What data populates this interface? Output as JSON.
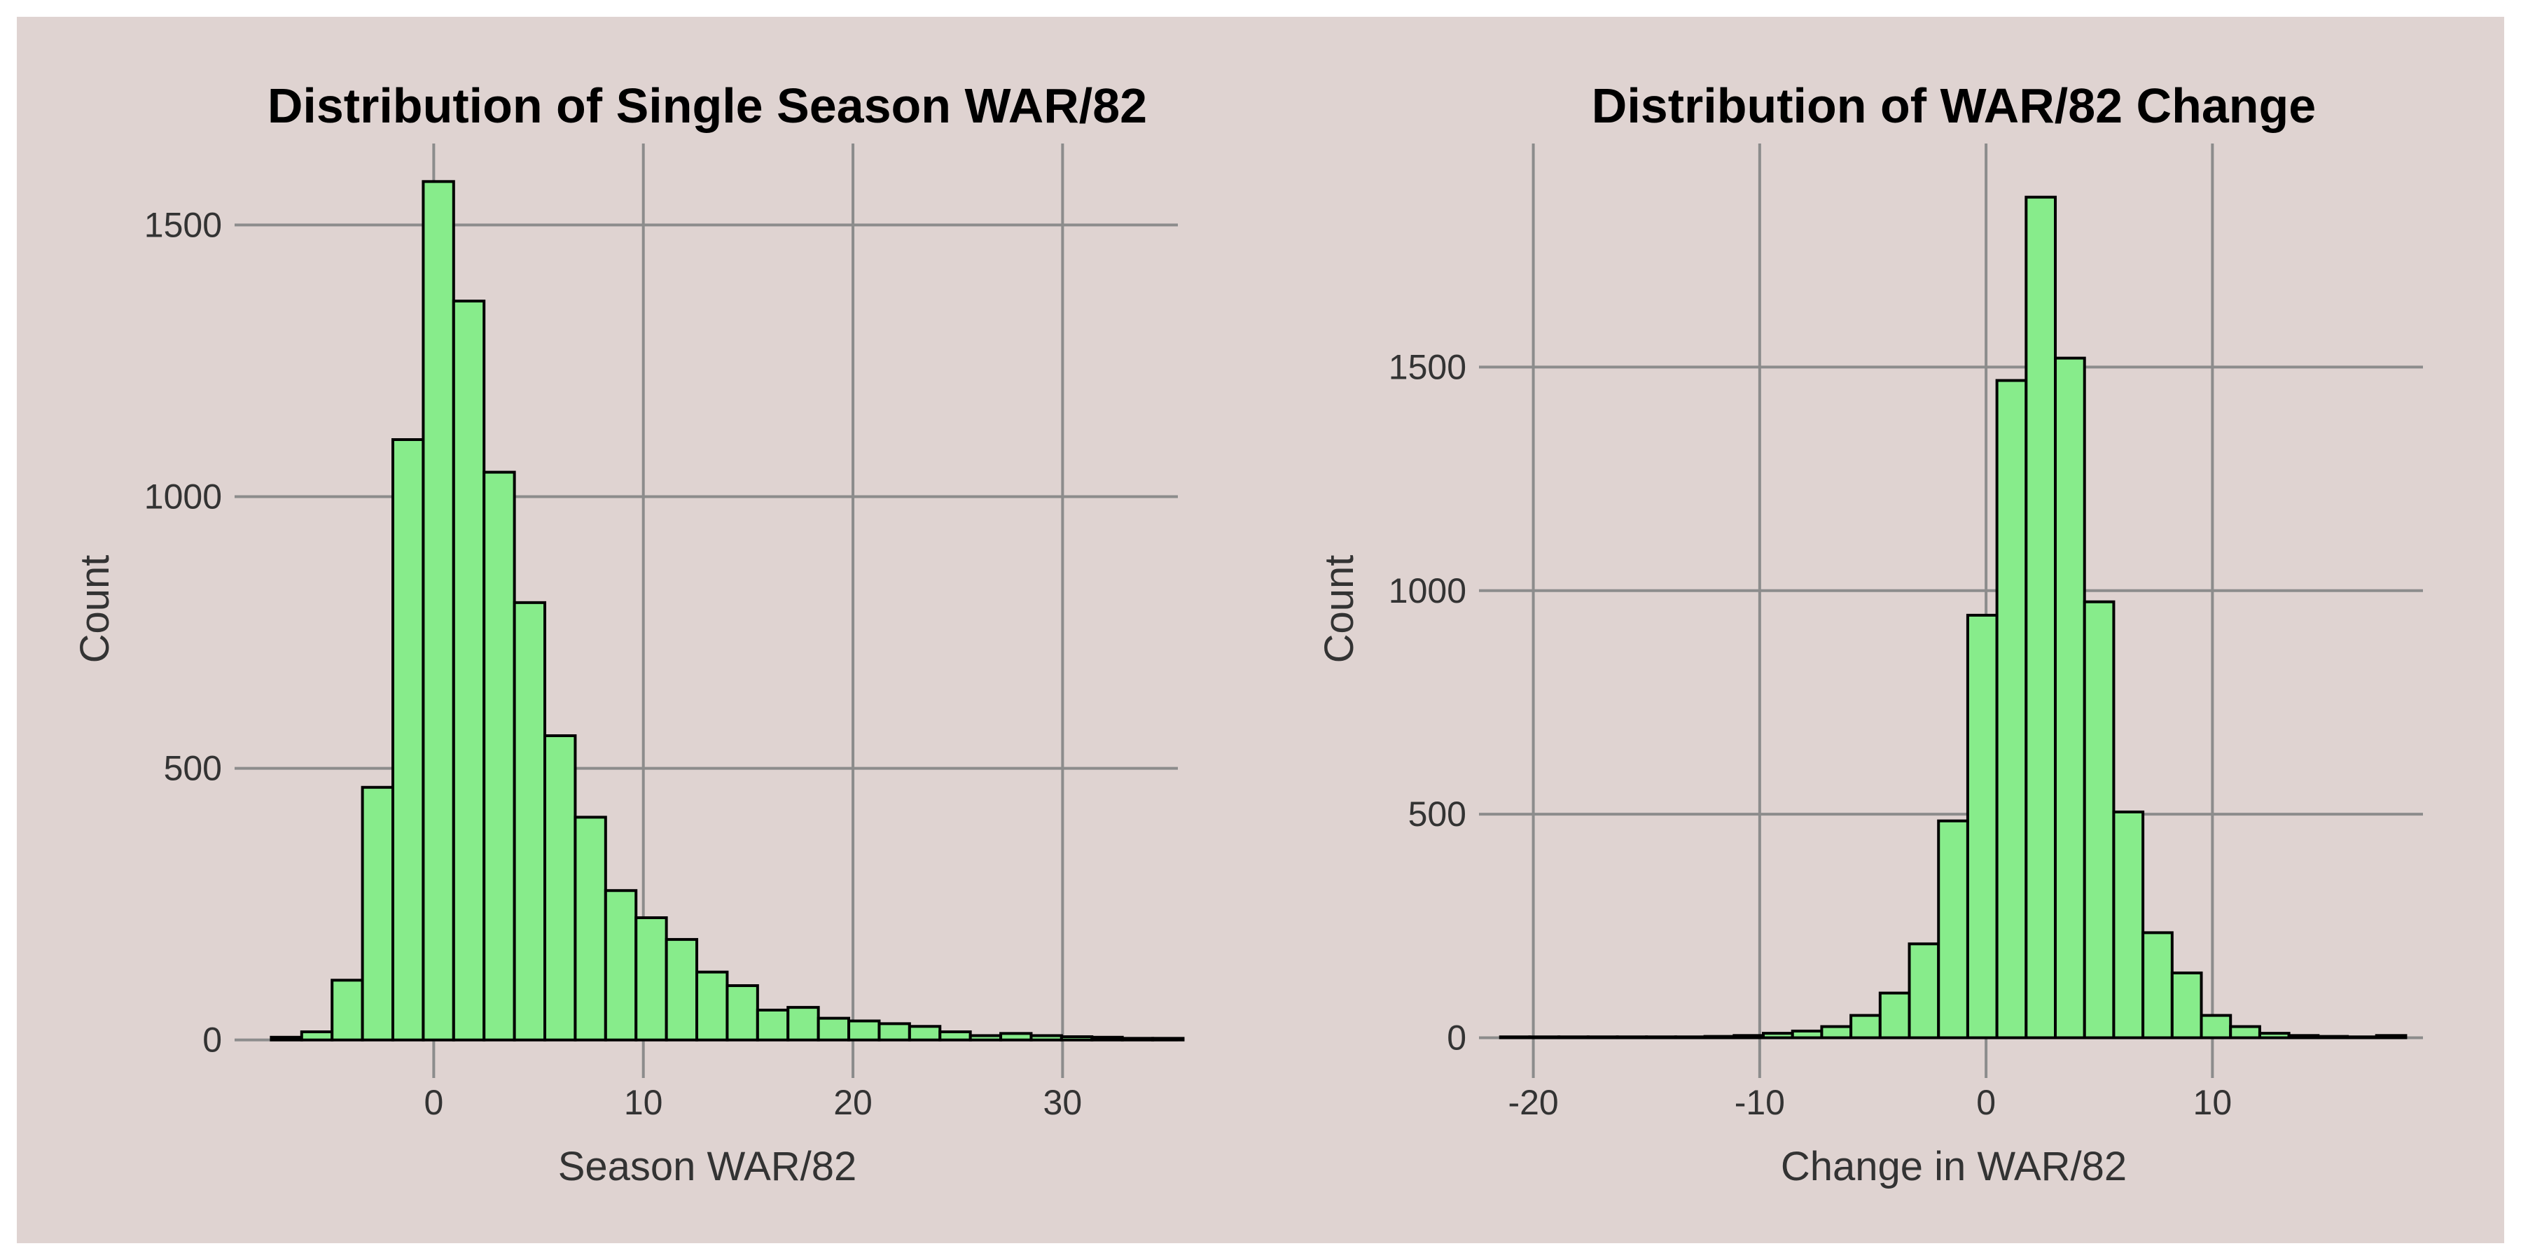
{
  "colors": {
    "panel_background": "#dfd3d1",
    "bar_fill": "#87ec8b",
    "bar_stroke": "#000000",
    "gridline": "#8c8c8c",
    "title_text": "#000000",
    "axis_text": "#333333"
  },
  "chart_data": [
    {
      "type": "bar",
      "title": "Distribution of Single Season WAR/82",
      "xlabel": "Season WAR/82",
      "ylabel": "Count",
      "bin_width": 1.45,
      "bin_start": -7.75,
      "xlim": [
        -9.5,
        35.5
      ],
      "ylim": [
        -70,
        1650
      ],
      "xticks": [
        0,
        10,
        20,
        30
      ],
      "yticks": [
        0,
        500,
        1000,
        1500
      ],
      "grid": true,
      "values": [
        5,
        15,
        110,
        465,
        1105,
        1580,
        1360,
        1045,
        805,
        560,
        410,
        275,
        225,
        185,
        125,
        100,
        55,
        60,
        40,
        35,
        30,
        25,
        15,
        8,
        12,
        8,
        6,
        5,
        3,
        3
      ]
    },
    {
      "type": "bar",
      "title": "Distribution of WAR/82 Change",
      "xlabel": "Change in WAR/82",
      "ylabel": "Count",
      "bin_width": 1.29,
      "bin_start": -21.45,
      "xlim": [
        -22.4,
        19.3
      ],
      "ylim": [
        -90,
        2000
      ],
      "xticks": [
        -20,
        -10,
        0,
        10
      ],
      "yticks": [
        0,
        500,
        1000,
        1500
      ],
      "grid": true,
      "values": [
        2,
        2,
        2,
        2,
        2,
        2,
        2,
        3,
        5,
        10,
        15,
        25,
        50,
        100,
        210,
        485,
        945,
        1470,
        1880,
        1520,
        975,
        505,
        235,
        145,
        50,
        25,
        10,
        5,
        3,
        2,
        5
      ]
    }
  ]
}
